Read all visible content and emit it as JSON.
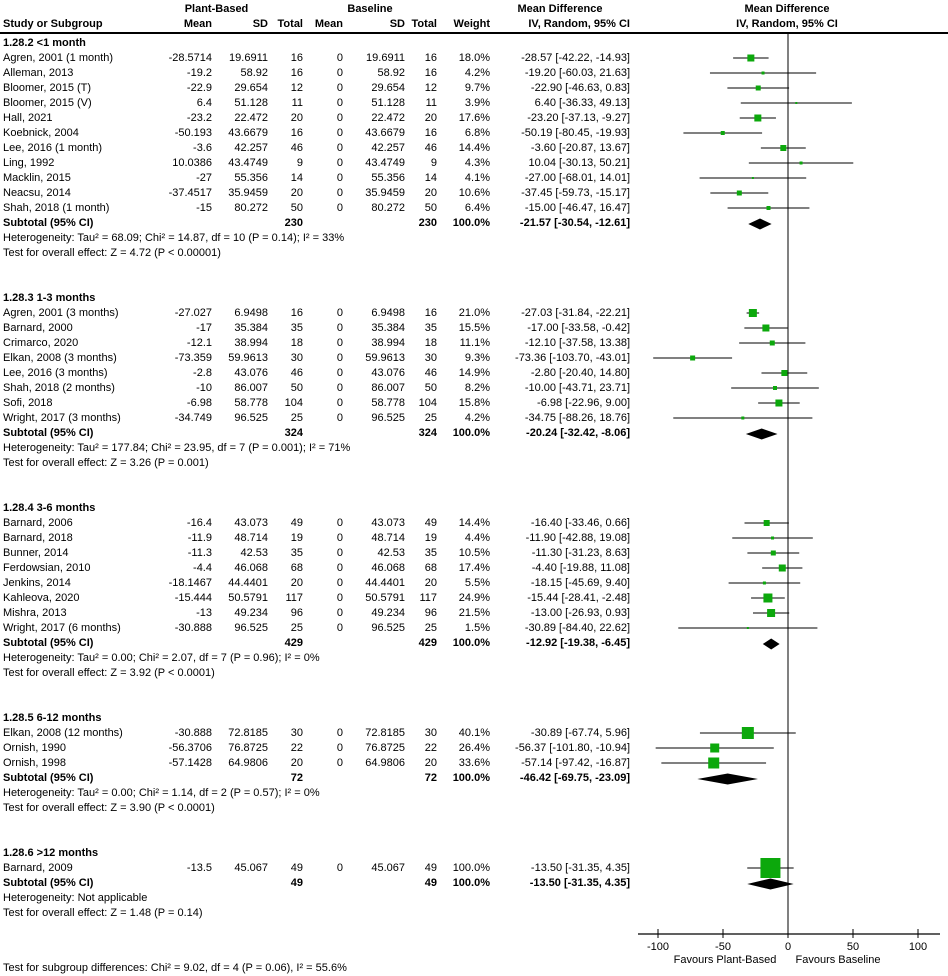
{
  "groups": {
    "plant": "Plant-Based",
    "baseline": "Baseline",
    "md_text": "Mean Difference",
    "md_plot": "Mean Difference"
  },
  "columns": {
    "study": "Study or Subgroup",
    "mean_plant": "Mean",
    "sd_plant": "SD",
    "total_plant": "Total",
    "mean_baseline": "Mean",
    "sd_baseline": "SD",
    "total_baseline": "Total",
    "weight": "Weight",
    "ci_text": "IV, Random, 95% CI",
    "ci_plot": "IV, Random, 95% CI"
  },
  "chart_data": {
    "type": "forest",
    "effect_measure": "Mean Difference, IV, Random, 95% CI",
    "axis": {
      "ticks": [
        -100,
        -50,
        0,
        50,
        100
      ],
      "xlim": [
        -115,
        115
      ],
      "favours_left": "Favours Plant-Based",
      "favours_right": "Favours Baseline"
    },
    "marker_color": "#0CA80C",
    "diamond_color": "#000000",
    "sections": [
      {
        "title": "1.28.2 <1 month",
        "studies": [
          {
            "label": "Agren, 2001 (1 month)",
            "mean": "-28.5714",
            "sd": "19.6911",
            "total": "16",
            "b_mean": "0",
            "b_sd": "19.6911",
            "b_total": "16",
            "weight": "18.0%",
            "ci": "-28.57 [-42.22, -14.93]",
            "est": -28.57,
            "lo": -42.22,
            "hi": -14.93,
            "w": 18.0
          },
          {
            "label": "Alleman, 2013",
            "mean": "-19.2",
            "sd": "58.92",
            "total": "16",
            "b_mean": "0",
            "b_sd": "58.92",
            "b_total": "16",
            "weight": "4.2%",
            "ci": "-19.20 [-60.03, 21.63]",
            "est": -19.2,
            "lo": -60.03,
            "hi": 21.63,
            "w": 4.2
          },
          {
            "label": "Bloomer, 2015 (T)",
            "mean": "-22.9",
            "sd": "29.654",
            "total": "12",
            "b_mean": "0",
            "b_sd": "29.654",
            "b_total": "12",
            "weight": "9.7%",
            "ci": "-22.90 [-46.63, 0.83]",
            "est": -22.9,
            "lo": -46.63,
            "hi": 0.83,
            "w": 9.7
          },
          {
            "label": "Bloomer, 2015 (V)",
            "mean": "6.4",
            "sd": "51.128",
            "total": "11",
            "b_mean": "0",
            "b_sd": "51.128",
            "b_total": "11",
            "weight": "3.9%",
            "ci": "6.40 [-36.33, 49.13]",
            "est": 6.4,
            "lo": -36.33,
            "hi": 49.13,
            "w": 3.9
          },
          {
            "label": "Hall, 2021",
            "mean": "-23.2",
            "sd": "22.472",
            "total": "20",
            "b_mean": "0",
            "b_sd": "22.472",
            "b_total": "20",
            "weight": "17.6%",
            "ci": "-23.20 [-37.13, -9.27]",
            "est": -23.2,
            "lo": -37.13,
            "hi": -9.27,
            "w": 17.6
          },
          {
            "label": "Koebnick, 2004",
            "mean": "-50.193",
            "sd": "43.6679",
            "total": "16",
            "b_mean": "0",
            "b_sd": "43.6679",
            "b_total": "16",
            "weight": "6.8%",
            "ci": "-50.19 [-80.45, -19.93]",
            "est": -50.19,
            "lo": -80.45,
            "hi": -19.93,
            "w": 6.8
          },
          {
            "label": "Lee, 2016 (1 month)",
            "mean": "-3.6",
            "sd": "42.257",
            "total": "46",
            "b_mean": "0",
            "b_sd": "42.257",
            "b_total": "46",
            "weight": "14.4%",
            "ci": "-3.60 [-20.87, 13.67]",
            "est": -3.6,
            "lo": -20.87,
            "hi": 13.67,
            "w": 14.4
          },
          {
            "label": "Ling, 1992",
            "mean": "10.0386",
            "sd": "43.4749",
            "total": "9",
            "b_mean": "0",
            "b_sd": "43.4749",
            "b_total": "9",
            "weight": "4.3%",
            "ci": "10.04 [-30.13, 50.21]",
            "est": 10.04,
            "lo": -30.13,
            "hi": 50.21,
            "w": 4.3
          },
          {
            "label": "Macklin, 2015",
            "mean": "-27",
            "sd": "55.356",
            "total": "14",
            "b_mean": "0",
            "b_sd": "55.356",
            "b_total": "14",
            "weight": "4.1%",
            "ci": "-27.00 [-68.01, 14.01]",
            "est": -27.0,
            "lo": -68.01,
            "hi": 14.01,
            "w": 4.1
          },
          {
            "label": "Neacsu, 2014",
            "mean": "-37.4517",
            "sd": "35.9459",
            "total": "20",
            "b_mean": "0",
            "b_sd": "35.9459",
            "b_total": "20",
            "weight": "10.6%",
            "ci": "-37.45 [-59.73, -15.17]",
            "est": -37.45,
            "lo": -59.73,
            "hi": -15.17,
            "w": 10.6
          },
          {
            "label": "Shah, 2018 (1 month)",
            "mean": "-15",
            "sd": "80.272",
            "total": "50",
            "b_mean": "0",
            "b_sd": "80.272",
            "b_total": "50",
            "weight": "6.4%",
            "ci": "-15.00 [-46.47, 16.47]",
            "est": -15.0,
            "lo": -46.47,
            "hi": 16.47,
            "w": 6.4
          }
        ],
        "subtotal": {
          "label": "Subtotal (95% CI)",
          "total": "230",
          "b_total": "230",
          "weight": "100.0%",
          "ci": "-21.57 [-30.54, -12.61]",
          "est": -21.57,
          "lo": -30.54,
          "hi": -12.61
        },
        "heterogeneity": "Heterogeneity: Tau² = 68.09; Chi² = 14.87, df = 10 (P = 0.14); I² = 33%",
        "overall": "Test for overall effect: Z = 4.72 (P < 0.00001)"
      },
      {
        "title": "1.28.3 1-3 months",
        "studies": [
          {
            "label": "Agren, 2001 (3 months)",
            "mean": "-27.027",
            "sd": "6.9498",
            "total": "16",
            "b_mean": "0",
            "b_sd": "6.9498",
            "b_total": "16",
            "weight": "21.0%",
            "ci": "-27.03 [-31.84, -22.21]",
            "est": -27.03,
            "lo": -31.84,
            "hi": -22.21,
            "w": 21.0
          },
          {
            "label": "Barnard, 2000",
            "mean": "-17",
            "sd": "35.384",
            "total": "35",
            "b_mean": "0",
            "b_sd": "35.384",
            "b_total": "35",
            "weight": "15.5%",
            "ci": "-17.00 [-33.58, -0.42]",
            "est": -17.0,
            "lo": -33.58,
            "hi": -0.42,
            "w": 15.5
          },
          {
            "label": "Crimarco, 2020",
            "mean": "-12.1",
            "sd": "38.994",
            "total": "18",
            "b_mean": "0",
            "b_sd": "38.994",
            "b_total": "18",
            "weight": "11.1%",
            "ci": "-12.10 [-37.58, 13.38]",
            "est": -12.1,
            "lo": -37.58,
            "hi": 13.38,
            "w": 11.1
          },
          {
            "label": "Elkan, 2008 (3 months)",
            "mean": "-73.359",
            "sd": "59.9613",
            "total": "30",
            "b_mean": "0",
            "b_sd": "59.9613",
            "b_total": "30",
            "weight": "9.3%",
            "ci": "-73.36 [-103.70, -43.01]",
            "est": -73.36,
            "lo": -103.7,
            "hi": -43.01,
            "w": 9.3
          },
          {
            "label": "Lee, 2016 (3 months)",
            "mean": "-2.8",
            "sd": "43.076",
            "total": "46",
            "b_mean": "0",
            "b_sd": "43.076",
            "b_total": "46",
            "weight": "14.9%",
            "ci": "-2.80 [-20.40, 14.80]",
            "est": -2.8,
            "lo": -20.4,
            "hi": 14.8,
            "w": 14.9
          },
          {
            "label": "Shah, 2018 (2 months)",
            "mean": "-10",
            "sd": "86.007",
            "total": "50",
            "b_mean": "0",
            "b_sd": "86.007",
            "b_total": "50",
            "weight": "8.2%",
            "ci": "-10.00 [-43.71, 23.71]",
            "est": -10.0,
            "lo": -43.71,
            "hi": 23.71,
            "w": 8.2
          },
          {
            "label": "Sofi, 2018",
            "mean": "-6.98",
            "sd": "58.778",
            "total": "104",
            "b_mean": "0",
            "b_sd": "58.778",
            "b_total": "104",
            "weight": "15.8%",
            "ci": "-6.98 [-22.96, 9.00]",
            "est": -6.98,
            "lo": -22.96,
            "hi": 9.0,
            "w": 15.8
          },
          {
            "label": "Wright, 2017 (3 months)",
            "mean": "-34.749",
            "sd": "96.525",
            "total": "25",
            "b_mean": "0",
            "b_sd": "96.525",
            "b_total": "25",
            "weight": "4.2%",
            "ci": "-34.75 [-88.26, 18.76]",
            "est": -34.75,
            "lo": -88.26,
            "hi": 18.76,
            "w": 4.2
          }
        ],
        "subtotal": {
          "label": "Subtotal (95% CI)",
          "total": "324",
          "b_total": "324",
          "weight": "100.0%",
          "ci": "-20.24 [-32.42, -8.06]",
          "est": -20.24,
          "lo": -32.42,
          "hi": -8.06
        },
        "heterogeneity": "Heterogeneity: Tau² = 177.84; Chi² = 23.95, df = 7 (P = 0.001); I² = 71%",
        "overall": "Test for overall effect: Z = 3.26 (P = 0.001)"
      },
      {
        "title": "1.28.4 3-6 months",
        "studies": [
          {
            "label": "Barnard, 2006",
            "mean": "-16.4",
            "sd": "43.073",
            "total": "49",
            "b_mean": "0",
            "b_sd": "43.073",
            "b_total": "49",
            "weight": "14.4%",
            "ci": "-16.40 [-33.46, 0.66]",
            "est": -16.4,
            "lo": -33.46,
            "hi": 0.66,
            "w": 14.4
          },
          {
            "label": "Barnard, 2018",
            "mean": "-11.9",
            "sd": "48.714",
            "total": "19",
            "b_mean": "0",
            "b_sd": "48.714",
            "b_total": "19",
            "weight": "4.4%",
            "ci": "-11.90 [-42.88, 19.08]",
            "est": -11.9,
            "lo": -42.88,
            "hi": 19.08,
            "w": 4.4
          },
          {
            "label": "Bunner, 2014",
            "mean": "-11.3",
            "sd": "42.53",
            "total": "35",
            "b_mean": "0",
            "b_sd": "42.53",
            "b_total": "35",
            "weight": "10.5%",
            "ci": "-11.30 [-31.23, 8.63]",
            "est": -11.3,
            "lo": -31.23,
            "hi": 8.63,
            "w": 10.5
          },
          {
            "label": "Ferdowsian, 2010",
            "mean": "-4.4",
            "sd": "46.068",
            "total": "68",
            "b_mean": "0",
            "b_sd": "46.068",
            "b_total": "68",
            "weight": "17.4%",
            "ci": "-4.40 [-19.88, 11.08]",
            "est": -4.4,
            "lo": -19.88,
            "hi": 11.08,
            "w": 17.4
          },
          {
            "label": "Jenkins, 2014",
            "mean": "-18.1467",
            "sd": "44.4401",
            "total": "20",
            "b_mean": "0",
            "b_sd": "44.4401",
            "b_total": "20",
            "weight": "5.5%",
            "ci": "-18.15 [-45.69, 9.40]",
            "est": -18.15,
            "lo": -45.69,
            "hi": 9.4,
            "w": 5.5
          },
          {
            "label": "Kahleova, 2020",
            "mean": "-15.444",
            "sd": "50.5791",
            "total": "117",
            "b_mean": "0",
            "b_sd": "50.5791",
            "b_total": "117",
            "weight": "24.9%",
            "ci": "-15.44 [-28.41, -2.48]",
            "est": -15.44,
            "lo": -28.41,
            "hi": -2.48,
            "w": 24.9
          },
          {
            "label": "Mishra, 2013",
            "mean": "-13",
            "sd": "49.234",
            "total": "96",
            "b_mean": "0",
            "b_sd": "49.234",
            "b_total": "96",
            "weight": "21.5%",
            "ci": "-13.00 [-26.93, 0.93]",
            "est": -13.0,
            "lo": -26.93,
            "hi": 0.93,
            "w": 21.5
          },
          {
            "label": "Wright, 2017 (6 months)",
            "mean": "-30.888",
            "sd": "96.525",
            "total": "25",
            "b_mean": "0",
            "b_sd": "96.525",
            "b_total": "25",
            "weight": "1.5%",
            "ci": "-30.89 [-84.40, 22.62]",
            "est": -30.89,
            "lo": -84.4,
            "hi": 22.62,
            "w": 1.5
          }
        ],
        "subtotal": {
          "label": "Subtotal (95% CI)",
          "total": "429",
          "b_total": "429",
          "weight": "100.0%",
          "ci": "-12.92 [-19.38, -6.45]",
          "est": -12.92,
          "lo": -19.38,
          "hi": -6.45
        },
        "heterogeneity": "Heterogeneity: Tau² = 0.00; Chi² = 2.07, df = 7 (P = 0.96); I² = 0%",
        "overall": "Test for overall effect: Z = 3.92 (P < 0.0001)"
      },
      {
        "title": "1.28.5 6-12 months",
        "studies": [
          {
            "label": "Elkan, 2008 (12 months)",
            "mean": "-30.888",
            "sd": "72.8185",
            "total": "30",
            "b_mean": "0",
            "b_sd": "72.8185",
            "b_total": "30",
            "weight": "40.1%",
            "ci": "-30.89 [-67.74, 5.96]",
            "est": -30.89,
            "lo": -67.74,
            "hi": 5.96,
            "w": 40.1
          },
          {
            "label": "Ornish, 1990",
            "mean": "-56.3706",
            "sd": "76.8725",
            "total": "22",
            "b_mean": "0",
            "b_sd": "76.8725",
            "b_total": "22",
            "weight": "26.4%",
            "ci": "-56.37 [-101.80, -10.94]",
            "est": -56.37,
            "lo": -101.8,
            "hi": -10.94,
            "w": 26.4
          },
          {
            "label": "Ornish, 1998",
            "mean": "-57.1428",
            "sd": "64.9806",
            "total": "20",
            "b_mean": "0",
            "b_sd": "64.9806",
            "b_total": "20",
            "weight": "33.6%",
            "ci": "-57.14 [-97.42, -16.87]",
            "est": -57.14,
            "lo": -97.42,
            "hi": -16.87,
            "w": 33.6
          }
        ],
        "subtotal": {
          "label": "Subtotal (95% CI)",
          "total": "72",
          "b_total": "72",
          "weight": "100.0%",
          "ci": "-46.42 [-69.75, -23.09]",
          "est": -46.42,
          "lo": -69.75,
          "hi": -23.09
        },
        "heterogeneity": "Heterogeneity: Tau² = 0.00; Chi² = 1.14, df = 2 (P = 0.57); I² = 0%",
        "overall": "Test for overall effect: Z = 3.90 (P < 0.0001)"
      },
      {
        "title": "1.28.6 >12 months",
        "studies": [
          {
            "label": "Barnard, 2009",
            "mean": "-13.5",
            "sd": "45.067",
            "total": "49",
            "b_mean": "0",
            "b_sd": "45.067",
            "b_total": "49",
            "weight": "100.0%",
            "ci": "-13.50 [-31.35, 4.35]",
            "est": -13.5,
            "lo": -31.35,
            "hi": 4.35,
            "w": 100.0
          }
        ],
        "subtotal": {
          "label": "Subtotal (95% CI)",
          "total": "49",
          "b_total": "49",
          "weight": "100.0%",
          "ci": "-13.50 [-31.35, 4.35]",
          "est": -13.5,
          "lo": -31.35,
          "hi": 4.35
        },
        "heterogeneity": "Heterogeneity: Not applicable",
        "overall": "Test for overall effect: Z = 1.48 (P = 0.14)"
      }
    ],
    "footer": "Test for subgroup differences: Chi² = 9.02, df = 4 (P = 0.06), I² = 55.6%"
  }
}
